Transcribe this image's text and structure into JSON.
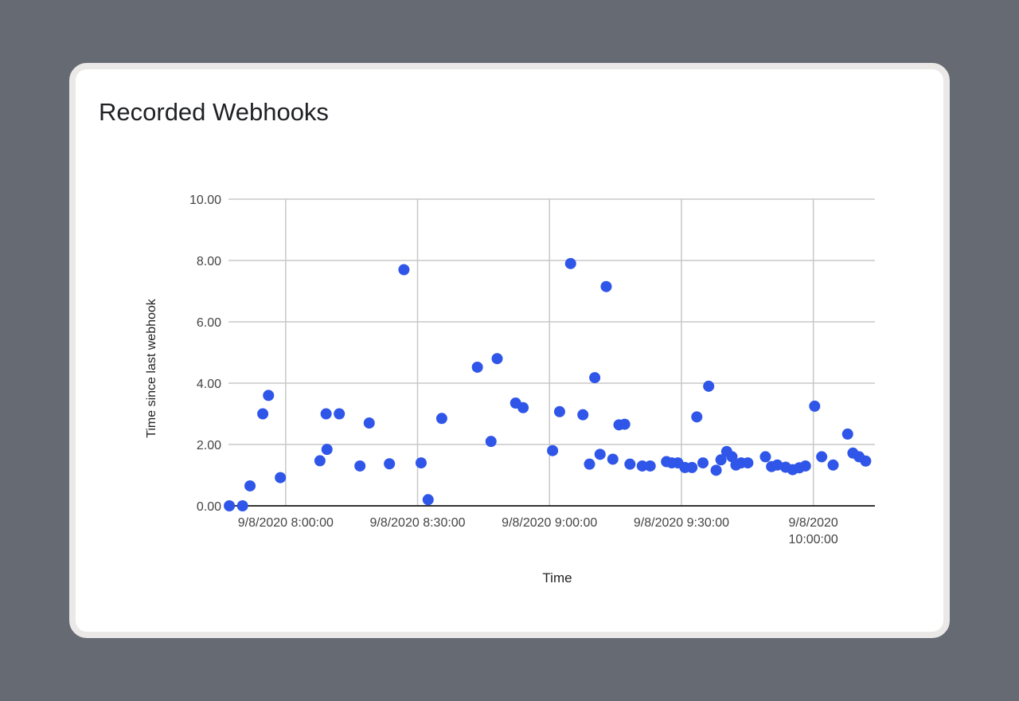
{
  "card": {
    "title": "Recorded Webhooks"
  },
  "chart_data": {
    "type": "scatter",
    "title": "Recorded Webhooks",
    "xlabel": "Time",
    "ylabel": "Time since last webhook",
    "ylim": [
      0,
      10
    ],
    "xlim": [
      "7:47:00",
      "10:14:00"
    ],
    "grid": true,
    "yticks": [
      {
        "value": 0,
        "label": "0.00"
      },
      {
        "value": 2,
        "label": "2.00"
      },
      {
        "value": 4,
        "label": "4.00"
      },
      {
        "value": 6,
        "label": "6.00"
      },
      {
        "value": 8,
        "label": "8.00"
      },
      {
        "value": 10,
        "label": "10.00"
      }
    ],
    "xticks": [
      {
        "value": "8:00:00",
        "lines": [
          "9/8/2020 8:00:00"
        ]
      },
      {
        "value": "8:30:00",
        "lines": [
          "9/8/2020 8:30:00"
        ]
      },
      {
        "value": "9:00:00",
        "lines": [
          "9/8/2020 9:00:00"
        ]
      },
      {
        "value": "9:30:00",
        "lines": [
          "9/8/2020 9:30:00"
        ]
      },
      {
        "value": "10:00:00",
        "lines": [
          "9/8/2020",
          "10:00:00"
        ]
      }
    ],
    "point_color": "#2f56e8",
    "points": [
      {
        "x": "7:47:12",
        "y": 0.0
      },
      {
        "x": "7:50:12",
        "y": 0.0
      },
      {
        "x": "7:51:54",
        "y": 0.65
      },
      {
        "x": "7:54:48",
        "y": 3.0
      },
      {
        "x": "7:56:06",
        "y": 3.6
      },
      {
        "x": "7:58:48",
        "y": 0.92
      },
      {
        "x": "8:07:48",
        "y": 1.47
      },
      {
        "x": "8:09:12",
        "y": 3.0
      },
      {
        "x": "8:09:24",
        "y": 1.84
      },
      {
        "x": "8:12:12",
        "y": 3.0
      },
      {
        "x": "8:16:54",
        "y": 1.3
      },
      {
        "x": "8:19:00",
        "y": 2.7
      },
      {
        "x": "8:23:36",
        "y": 1.37
      },
      {
        "x": "8:26:54",
        "y": 7.7
      },
      {
        "x": "8:30:48",
        "y": 1.4
      },
      {
        "x": "8:32:24",
        "y": 0.2
      },
      {
        "x": "8:35:30",
        "y": 2.85
      },
      {
        "x": "8:43:36",
        "y": 4.52
      },
      {
        "x": "8:46:42",
        "y": 2.1
      },
      {
        "x": "8:48:06",
        "y": 4.8
      },
      {
        "x": "8:52:18",
        "y": 3.35
      },
      {
        "x": "8:54:00",
        "y": 3.2
      },
      {
        "x": "9:00:42",
        "y": 1.8
      },
      {
        "x": "9:02:18",
        "y": 3.07
      },
      {
        "x": "9:07:36",
        "y": 2.97
      },
      {
        "x": "9:04:48",
        "y": 7.9
      },
      {
        "x": "9:09:06",
        "y": 1.36
      },
      {
        "x": "9:10:18",
        "y": 4.18
      },
      {
        "x": "9:11:30",
        "y": 1.68
      },
      {
        "x": "9:12:54",
        "y": 7.15
      },
      {
        "x": "9:14:24",
        "y": 1.52
      },
      {
        "x": "9:15:48",
        "y": 2.64
      },
      {
        "x": "9:17:06",
        "y": 2.66
      },
      {
        "x": "9:18:18",
        "y": 1.36
      },
      {
        "x": "9:21:06",
        "y": 1.3
      },
      {
        "x": "9:22:54",
        "y": 1.3
      },
      {
        "x": "9:26:36",
        "y": 1.44
      },
      {
        "x": "9:27:48",
        "y": 1.4
      },
      {
        "x": "9:29:12",
        "y": 1.4
      },
      {
        "x": "9:30:48",
        "y": 1.25
      },
      {
        "x": "9:32:24",
        "y": 1.25
      },
      {
        "x": "9:33:30",
        "y": 2.9
      },
      {
        "x": "9:34:54",
        "y": 1.4
      },
      {
        "x": "9:36:12",
        "y": 3.9
      },
      {
        "x": "9:37:54",
        "y": 1.16
      },
      {
        "x": "9:39:00",
        "y": 1.5
      },
      {
        "x": "9:40:18",
        "y": 1.77
      },
      {
        "x": "9:41:30",
        "y": 1.6
      },
      {
        "x": "9:42:24",
        "y": 1.33
      },
      {
        "x": "9:43:36",
        "y": 1.4
      },
      {
        "x": "9:45:06",
        "y": 1.4
      },
      {
        "x": "9:49:06",
        "y": 1.6
      },
      {
        "x": "9:50:30",
        "y": 1.28
      },
      {
        "x": "9:51:48",
        "y": 1.33
      },
      {
        "x": "9:53:42",
        "y": 1.26
      },
      {
        "x": "9:55:18",
        "y": 1.18
      },
      {
        "x": "9:56:48",
        "y": 1.24
      },
      {
        "x": "9:58:12",
        "y": 1.3
      },
      {
        "x": "10:00:18",
        "y": 3.25
      },
      {
        "x": "10:01:54",
        "y": 1.6
      },
      {
        "x": "10:04:30",
        "y": 1.33
      },
      {
        "x": "10:07:48",
        "y": 2.34
      },
      {
        "x": "10:09:00",
        "y": 1.72
      },
      {
        "x": "10:10:24",
        "y": 1.6
      },
      {
        "x": "10:11:54",
        "y": 1.46
      }
    ]
  }
}
